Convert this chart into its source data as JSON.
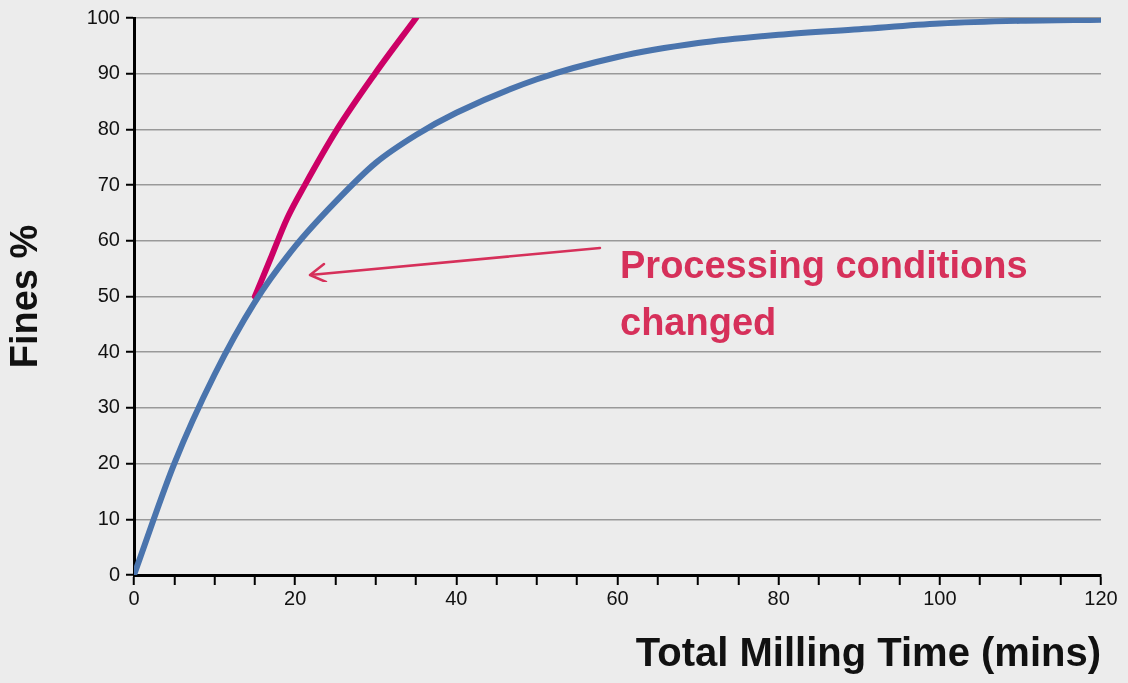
{
  "chart_data": {
    "type": "line",
    "xlabel": "Total Milling Time (mins)",
    "ylabel": "Fines %",
    "xlim": [
      0,
      120
    ],
    "ylim": [
      0,
      100
    ],
    "xticks": [
      0,
      {
        "value": 5,
        "label": null
      },
      {
        "value": 10,
        "label": null
      },
      {
        "value": 15,
        "label": null
      },
      20,
      {
        "value": 25,
        "label": null
      },
      {
        "value": 30,
        "label": null
      },
      {
        "value": 35,
        "label": null
      },
      40,
      {
        "value": 45,
        "label": null
      },
      {
        "value": 50,
        "label": null
      },
      {
        "value": 55,
        "label": null
      },
      60,
      {
        "value": 65,
        "label": null
      },
      {
        "value": 70,
        "label": null
      },
      {
        "value": 75,
        "label": null
      },
      80,
      {
        "value": 85,
        "label": null
      },
      {
        "value": 90,
        "label": null
      },
      {
        "value": 95,
        "label": null
      },
      100,
      {
        "value": 105,
        "label": null
      },
      {
        "value": 110,
        "label": null
      },
      {
        "value": 115,
        "label": null
      },
      120
    ],
    "yticks": [
      0,
      10,
      20,
      30,
      40,
      50,
      60,
      70,
      80,
      90,
      100
    ],
    "grid": "y",
    "marker": "none",
    "line_style": "solid",
    "series": [
      {
        "color": "#4a74ad",
        "x": [
          0,
          5,
          10,
          15,
          20,
          25,
          30,
          35,
          40,
          50,
          60,
          70,
          80,
          90,
          100,
          110,
          120
        ],
        "values": [
          0,
          20,
          36,
          49,
          59,
          67,
          74,
          79,
          83,
          89,
          93,
          95.5,
          97,
          98,
          99,
          99.5,
          99.7
        ]
      },
      {
        "color": "#cc0066",
        "x": [
          15,
          17,
          19,
          21.2,
          25.2,
          29.9,
          35
        ],
        "values": [
          50,
          57,
          64,
          70,
          80,
          90,
          100
        ]
      }
    ],
    "annotations": [
      "Processing conditions changed"
    ]
  }
}
